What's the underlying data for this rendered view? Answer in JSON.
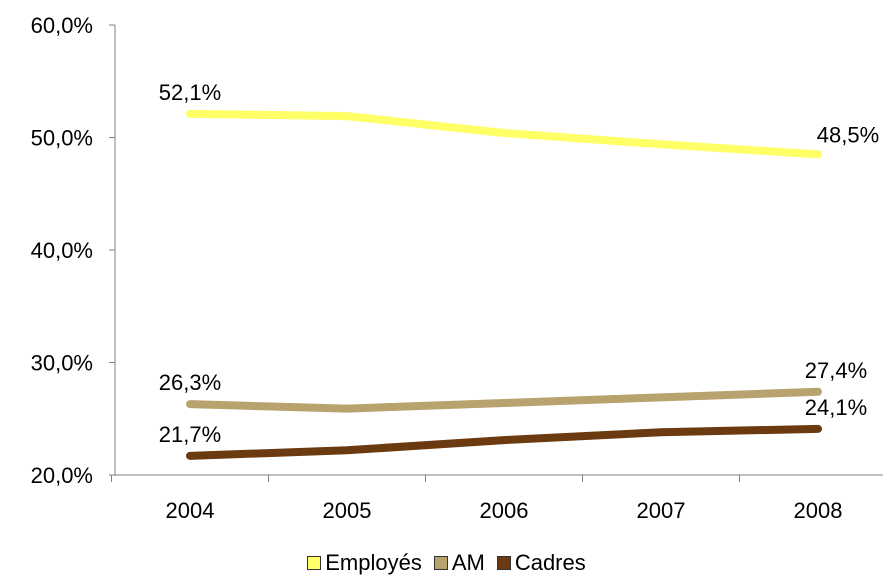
{
  "chart_data": {
    "type": "line",
    "categories": [
      "2004",
      "2005",
      "2006",
      "2007",
      "2008"
    ],
    "series": [
      {
        "name": "Employés",
        "values": [
          52.1,
          51.9,
          50.4,
          49.4,
          48.5
        ],
        "color": "#FFFF66",
        "labels": [
          "52,1%",
          "",
          "",
          "",
          "48,5%"
        ]
      },
      {
        "name": "AM",
        "values": [
          26.3,
          25.9,
          26.4,
          26.9,
          27.4
        ],
        "color": "#B8A26E",
        "labels": [
          "26,3%",
          "",
          "",
          "",
          "27,4%"
        ]
      },
      {
        "name": "Cadres",
        "values": [
          21.7,
          22.2,
          23.1,
          23.8,
          24.1
        ],
        "color": "#6B3A10",
        "labels": [
          "21,7%",
          "",
          "",
          "",
          "24,1%"
        ]
      }
    ],
    "y_ticks": [
      "20,0%",
      "30,0%",
      "40,0%",
      "50,0%",
      "60,0%"
    ],
    "ylim": [
      20,
      60
    ],
    "grid": false,
    "legend_position": "bottom"
  }
}
